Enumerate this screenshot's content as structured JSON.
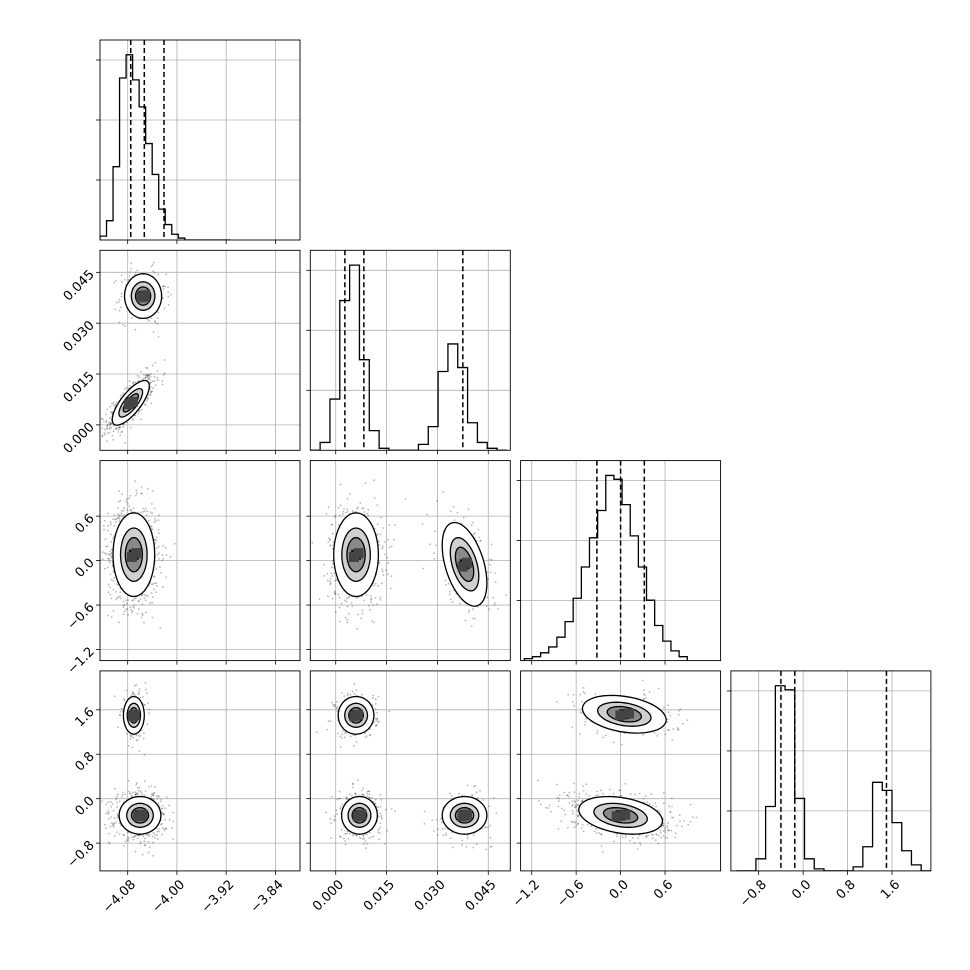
{
  "chart_data": {
    "type": "corner",
    "parameters": [
      {
        "range": [
          -4.125,
          -3.8
        ],
        "ticks": [
          -4.08,
          -4.0,
          -3.92,
          -3.84
        ],
        "tick_labels": [
          "−4.08",
          "−4.00",
          "−3.92",
          "−3.84"
        ],
        "quantiles": [
          -4.075,
          -4.053,
          -4.021
        ],
        "histogram": {
          "bin_edges": [
            -4.125,
            -4.1144,
            -4.1038,
            -4.0932,
            -4.0826,
            -4.072,
            -4.0614,
            -4.0508,
            -4.0402,
            -4.0296,
            -4.019,
            -4.0084,
            -3.9978,
            -3.9872,
            -3.9766,
            -3.966,
            -3.9554,
            -3.9448,
            -3.9342,
            -3.9236,
            -3.913
          ],
          "counts": [
            2,
            10,
            38,
            84,
            96,
            83,
            69,
            50,
            34,
            16,
            8,
            3,
            1,
            0,
            0,
            0,
            0,
            0,
            0,
            0
          ]
        }
      },
      {
        "range": [
          -0.0075,
          0.0515
        ],
        "ticks": [
          0.0,
          0.015,
          0.03,
          0.045
        ],
        "tick_labels": [
          "0.000",
          "0.015",
          "0.030",
          "0.045"
        ],
        "quantiles": [
          0.0027,
          0.0083,
          0.0375
        ],
        "histogram": {
          "bin_edges": [
            -0.0075,
            -0.0046,
            -0.0017,
            0.0012,
            0.0041,
            0.007,
            0.0099,
            0.0128,
            0.0157,
            0.0186,
            0.0215,
            0.0244,
            0.0273,
            0.0302,
            0.0331,
            0.036,
            0.0389,
            0.0418,
            0.0447,
            0.0476,
            0.0505
          ],
          "counts": [
            0,
            4,
            26,
            76,
            94,
            46,
            10,
            1,
            0,
            0,
            0,
            3,
            12,
            40,
            54,
            42,
            14,
            4,
            1,
            0
          ]
        }
      },
      {
        "range": [
          -1.35,
          1.35
        ],
        "ticks": [
          -1.2,
          -0.6,
          0.0,
          0.6
        ],
        "tick_labels": [
          "−1.2",
          "−0.6",
          "0.0",
          "0.6"
        ],
        "quantiles": [
          -0.32,
          0.0,
          0.32
        ],
        "histogram": {
          "bin_edges": [
            -1.3,
            -1.19,
            -1.08,
            -0.97,
            -0.86,
            -0.75,
            -0.64,
            -0.53,
            -0.42,
            -0.31,
            -0.2,
            -0.09,
            0.02,
            0.13,
            0.24,
            0.35,
            0.46,
            0.57,
            0.68,
            0.79,
            0.9
          ],
          "counts": [
            1,
            2,
            4,
            7,
            12,
            20,
            32,
            48,
            63,
            77,
            95,
            93,
            80,
            64,
            48,
            31,
            18,
            10,
            5,
            2
          ]
        }
      },
      {
        "range": [
          -1.3,
          2.3
        ],
        "ticks": [
          -0.8,
          0.0,
          0.8,
          1.6
        ],
        "tick_labels": [
          "−0.8",
          "0.0",
          "0.8",
          "1.6"
        ],
        "quantiles": [
          -0.4,
          -0.15,
          1.5
        ],
        "histogram": {
          "bin_edges": [
            -1.2,
            -1.025,
            -0.85,
            -0.675,
            -0.5,
            -0.325,
            -0.15,
            0.025,
            0.2,
            0.375,
            0.55,
            0.725,
            0.9,
            1.075,
            1.25,
            1.425,
            1.6,
            1.775,
            1.95,
            2.125,
            2.3
          ],
          "counts": [
            0,
            0,
            6,
            32,
            92,
            90,
            36,
            6,
            1,
            0,
            0,
            0,
            2,
            12,
            44,
            40,
            24,
            10,
            3,
            0
          ]
        }
      }
    ],
    "pairs": [
      {
        "row": 1,
        "col": 0,
        "modes": [
          {
            "center": [
              -4.075,
              0.0065
            ],
            "sd": [
              0.016,
              0.0035
            ],
            "corr": 0.75,
            "weight": 0.72
          },
          {
            "center": [
              -4.055,
              0.038
            ],
            "sd": [
              0.016,
              0.0035
            ],
            "corr": 0.0,
            "weight": 0.28
          }
        ]
      },
      {
        "row": 2,
        "col": 0,
        "modes": [
          {
            "center": [
              -4.07,
              0.08
            ],
            "sd": [
              0.018,
              0.3
            ],
            "corr": 0.0,
            "weight": 1.0
          }
        ]
      },
      {
        "row": 2,
        "col": 1,
        "modes": [
          {
            "center": [
              0.006,
              0.08
            ],
            "sd": [
              0.0035,
              0.3
            ],
            "corr": 0.0,
            "weight": 0.72
          },
          {
            "center": [
              0.038,
              -0.05
            ],
            "sd": [
              0.0035,
              0.3
            ],
            "corr": -0.45,
            "weight": 0.28
          }
        ]
      },
      {
        "row": 3,
        "col": 0,
        "modes": [
          {
            "center": [
              -4.07,
              1.5
            ],
            "sd": [
              0.009,
              0.18
            ],
            "corr": 0.0,
            "weight": 0.25
          },
          {
            "center": [
              -4.06,
              -0.3
            ],
            "sd": [
              0.018,
              0.18
            ],
            "corr": 0.0,
            "weight": 0.75
          }
        ]
      },
      {
        "row": 3,
        "col": 1,
        "modes": [
          {
            "center": [
              0.006,
              1.5
            ],
            "sd": [
              0.0028,
              0.18
            ],
            "corr": 0.0,
            "weight": 0.25
          },
          {
            "center": [
              0.007,
              -0.3
            ],
            "sd": [
              0.0028,
              0.18
            ],
            "corr": 0.0,
            "weight": 0.5
          },
          {
            "center": [
              0.038,
              -0.3
            ],
            "sd": [
              0.0035,
              0.18
            ],
            "corr": 0.0,
            "weight": 0.25
          }
        ]
      },
      {
        "row": 3,
        "col": 2,
        "modes": [
          {
            "center": [
              0.05,
              1.52
            ],
            "sd": [
              0.3,
              0.18
            ],
            "corr": -0.3,
            "weight": 0.25
          },
          {
            "center": [
              0.0,
              -0.3
            ],
            "sd": [
              0.3,
              0.18
            ],
            "corr": -0.3,
            "weight": 0.75
          }
        ]
      }
    ],
    "grid": true,
    "quantile_line_style": "dashed",
    "colors": {
      "line": "#000000",
      "grid": "#b0b0b0",
      "points": "#333333",
      "background": "#ffffff"
    }
  }
}
